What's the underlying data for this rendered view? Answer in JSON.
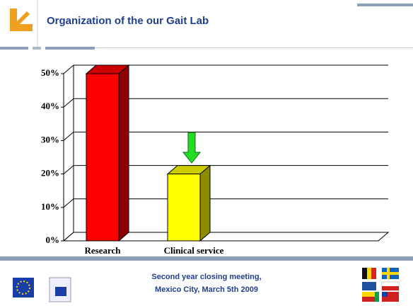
{
  "slide_title": "Organization of the our  Gait Lab",
  "chart_data": {
    "type": "bar3d",
    "categories": [
      "Research",
      "Clinical service"
    ],
    "values": [
      50,
      20
    ],
    "colors": [
      "#ff0000",
      "#ffff00"
    ],
    "ylim": [
      0,
      50
    ],
    "yticks": [
      {
        "value": 0,
        "label": "0%"
      },
      {
        "value": 10,
        "label": "10%"
      },
      {
        "value": 20,
        "label": "20%"
      },
      {
        "value": 30,
        "label": "30%"
      },
      {
        "value": 40,
        "label": "40%"
      },
      {
        "value": 50,
        "label": "50%"
      }
    ],
    "grid": true
  },
  "footer": {
    "lines": [
      "Second year closing meeting,",
      "Mexico City,  March 5th  2009"
    ]
  }
}
